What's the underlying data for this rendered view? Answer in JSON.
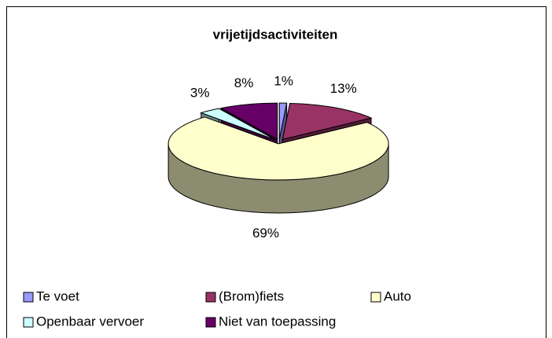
{
  "chart_data": {
    "type": "pie3d",
    "title": "vrijetijdsactiviteiten",
    "categories": [
      "Te voet",
      "(Brom)fiets",
      "Auto",
      "Openbaar vervoer",
      "Niet van toepassing"
    ],
    "values": [
      1,
      13,
      69,
      3,
      8
    ],
    "value_labels": [
      "1%",
      "13%",
      "69%",
      "3%",
      "8%"
    ],
    "colors": [
      "#9999ff",
      "#993366",
      "#ffffcc",
      "#ccffff",
      "#660066"
    ],
    "legend": "bottom"
  }
}
